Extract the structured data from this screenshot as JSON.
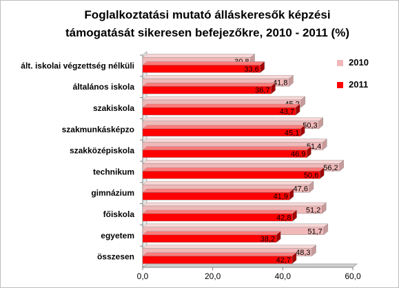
{
  "chart_data": {
    "type": "bar",
    "orientation": "horizontal",
    "title": [
      "Foglalkoztatási  mutató  álláskeresők  képzési",
      "támogatását  sikeresen  befejezőkre, 2010 - 2011 (%)"
    ],
    "categories": [
      "ált. iskolai végzettség nélküli",
      "általános iskola",
      "szakiskola",
      "szakmunkásképzo",
      "szakközépiskola",
      "technikum",
      "gimnázium",
      "főiskola",
      "egyetem",
      "összesen"
    ],
    "series": [
      {
        "name": "2010",
        "color": "#f0b8b8",
        "values": [
          30.8,
          41.8,
          45.2,
          50.3,
          51.4,
          56.2,
          47.6,
          51.2,
          51.7,
          48.3
        ],
        "labels": [
          "30,8",
          "41,8",
          "45,2",
          "50,3",
          "51,4",
          "56,2",
          "47,6",
          "51,2",
          "51,7",
          "48,3"
        ]
      },
      {
        "name": "2011",
        "color": "#ff0000",
        "values": [
          33.6,
          36.7,
          43.7,
          45.1,
          46.9,
          50.6,
          41.9,
          42.8,
          38.2,
          42.7
        ],
        "labels": [
          "33,6",
          "36,7",
          "43,7",
          "45,1",
          "46,9",
          "50,6",
          "41,9",
          "42,8",
          "38,2",
          "42,7"
        ]
      }
    ],
    "xlim": [
      0,
      60
    ],
    "xticks": [
      0,
      20,
      40,
      60
    ],
    "xtick_labels": [
      "0,0",
      "20,0",
      "40,0",
      "60,0"
    ],
    "legend_position": "right",
    "grid": false,
    "style": "3d-bars"
  }
}
